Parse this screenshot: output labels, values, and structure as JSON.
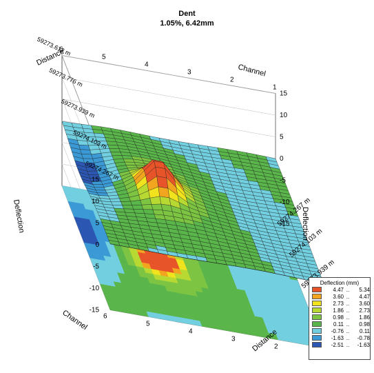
{
  "chart_data": {
    "type": "surface3d",
    "title": "Dent",
    "subtitle": "1.05%, 6.42mm",
    "axes": {
      "distance_label": "Distance",
      "channel_label": "Channel",
      "deflection_label": "Deflection",
      "distance_ticks": [
        "59273.612 m",
        "59273.776 m",
        "59273.939 m",
        "59274.103 m",
        "59274.267 m"
      ],
      "distance_ticks_back": [
        "59273.612 m",
        "59273.776 m",
        "59273.939 m",
        "59274.103 m",
        "59274.267 m"
      ],
      "channel_ticks": [
        "1",
        "2",
        "3",
        "4",
        "5",
        "6"
      ],
      "deflection_ticks": [
        "-15",
        "-10",
        "-5",
        "0",
        "5",
        "10",
        "15"
      ],
      "deflection_range": [
        -15,
        15
      ],
      "channel_range": [
        1,
        6
      ],
      "distance_range_m": [
        59273.612,
        59274.267
      ]
    },
    "peak": {
      "channel": 4.3,
      "distance_m": 59273.94,
      "deflection_mm": 6.42
    },
    "legend": {
      "title": "Deflection (mm)",
      "bins": [
        {
          "lo": "4.47",
          "hi": "5.34",
          "color": "#e8542a"
        },
        {
          "lo": "3.60",
          "hi": "4.47",
          "color": "#f2a51e"
        },
        {
          "lo": "2.73",
          "hi": "3.60",
          "color": "#f0e21c"
        },
        {
          "lo": "1.86",
          "hi": "2.73",
          "color": "#b8d832"
        },
        {
          "lo": "0.98",
          "hi": "1.86",
          "color": "#7cc442"
        },
        {
          "lo": "0.11",
          "hi": "0.98",
          "color": "#5ab54a"
        },
        {
          "lo": "-0.76",
          "hi": "0.11",
          "color": "#72cfe0"
        },
        {
          "lo": "-1.63",
          "hi": "-0.78",
          "color": "#3b9ad6"
        },
        {
          "lo": "-2.51",
          "hi": "-1.63",
          "color": "#2b57b2"
        }
      ]
    }
  }
}
